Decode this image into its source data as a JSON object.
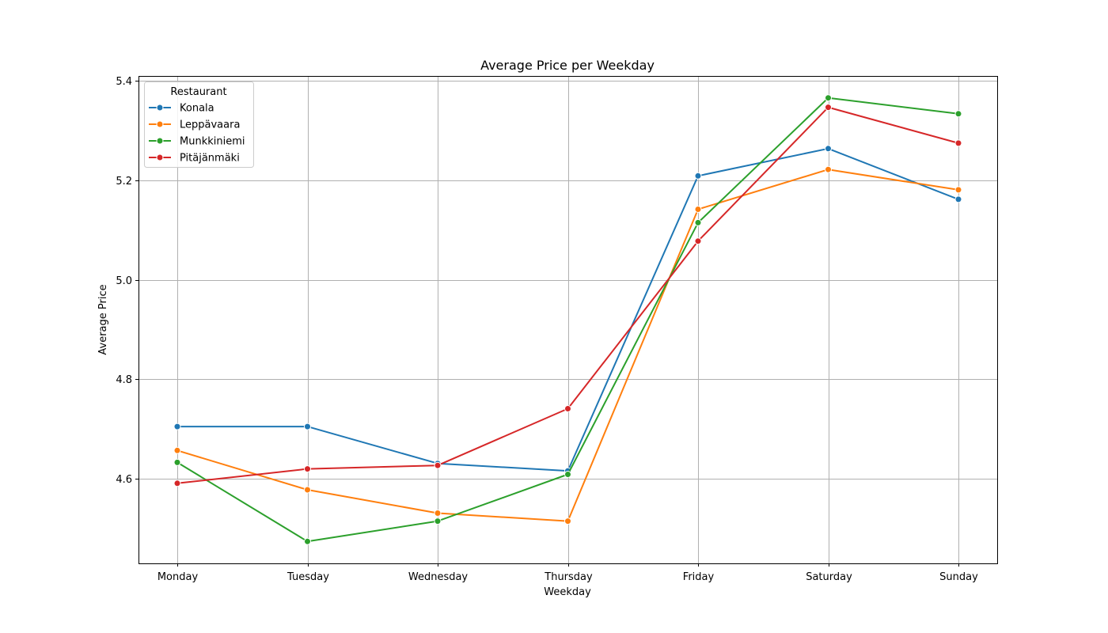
{
  "chart_data": {
    "type": "line",
    "title": "Average Price per Weekday",
    "xlabel": "Weekday",
    "ylabel": "Average Price",
    "categories": [
      "Monday",
      "Tuesday",
      "Wednesday",
      "Thursday",
      "Friday",
      "Saturday",
      "Sunday"
    ],
    "ylim": [
      4.43,
      5.41
    ],
    "yticks": [
      4.6,
      4.8,
      5.0,
      5.2,
      5.4
    ],
    "ytick_labels": [
      "4.6",
      "4.8",
      "5.0",
      "5.2",
      "5.4"
    ],
    "grid": true,
    "legend": {
      "title": "Restaurant",
      "placement": "top-left"
    },
    "series": [
      {
        "name": "Konala",
        "color": "#1f77b4",
        "values": [
          4.705,
          4.705,
          4.631,
          4.616,
          5.209,
          5.264,
          5.162
        ]
      },
      {
        "name": "Leppävaara",
        "color": "#ff7f0e",
        "values": [
          4.657,
          4.578,
          4.531,
          4.515,
          5.142,
          5.222,
          5.181
        ]
      },
      {
        "name": "Munkkiniemi",
        "color": "#2ca02c",
        "values": [
          4.633,
          4.474,
          4.515,
          4.609,
          5.115,
          5.366,
          5.334
        ]
      },
      {
        "name": "Pitäjänmäki",
        "color": "#d62728",
        "values": [
          4.591,
          4.62,
          4.627,
          4.741,
          5.078,
          5.347,
          5.275
        ]
      }
    ]
  }
}
